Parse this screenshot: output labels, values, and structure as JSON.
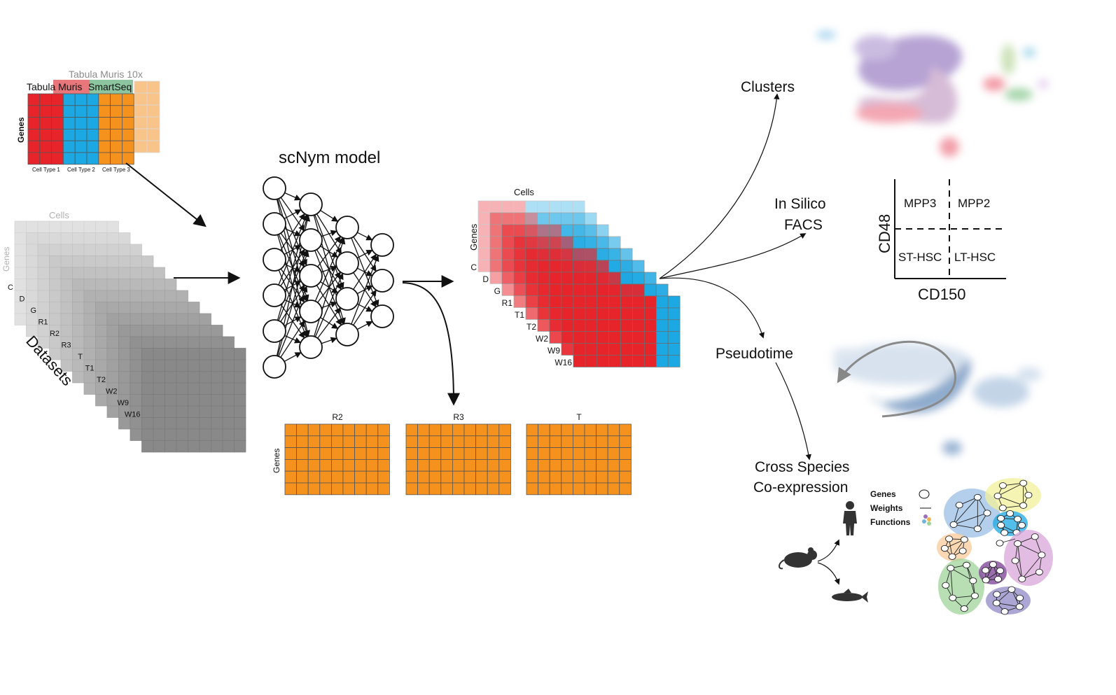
{
  "colors": {
    "red": "#e8242b",
    "blue": "#1ba8e3",
    "orange": "#f5921e",
    "light_orange": "#f9c48a",
    "pink": "#f2a6ad",
    "light_blue": "#a8dcf3",
    "grid_line": "#555555",
    "gray_dark": "#8a8a8a",
    "gray_light": "#d9d9d9",
    "umap_purple": "#9a7fc0",
    "umap_blue": "#6f95c2",
    "text": "#111111"
  },
  "reference": {
    "title_back": "Tabula Muris 10x",
    "title_front_a": "Tabula Muris",
    "title_front_b": "SmartSeq",
    "row_label": "Genes",
    "col_labels": [
      "Cell Type 1",
      "Cell Type 2",
      "Cell Type 3"
    ]
  },
  "datasets": {
    "col_label": "Cells",
    "row_label": "Genes",
    "stack_label": "Datasets",
    "layers": [
      "C",
      "D",
      "G",
      "R1",
      "R2",
      "R3",
      "T",
      "T1",
      "T2",
      "W2",
      "W9",
      "W16"
    ]
  },
  "model": {
    "title": "scNym model",
    "layer_sizes": [
      6,
      5,
      4,
      3
    ]
  },
  "outputs": {
    "panels": [
      {
        "title": "R2",
        "row_label": "Genes"
      },
      {
        "title": "R3",
        "row_label": ""
      },
      {
        "title": "T",
        "row_label": ""
      }
    ]
  },
  "annotated": {
    "col_label": "Cells",
    "row_label": "Genes",
    "layers": [
      "C",
      "D",
      "G",
      "R1",
      "T1",
      "T2",
      "W2",
      "W9",
      "W16"
    ]
  },
  "applications": {
    "clusters": "Clusters",
    "facs_line1": "In Silico",
    "facs_line2": "FACS",
    "pseudotime": "Pseudotime",
    "cross_line1": "Cross Species",
    "cross_line2": "Co-expression"
  },
  "facs": {
    "quadrants": [
      "MPP3",
      "MPP2",
      "ST-HSC",
      "LT-HSC"
    ],
    "y_label": "CD48",
    "x_label": "CD150"
  },
  "network_legend": {
    "genes": "Genes",
    "weights": "Weights",
    "functions": "Functions"
  }
}
